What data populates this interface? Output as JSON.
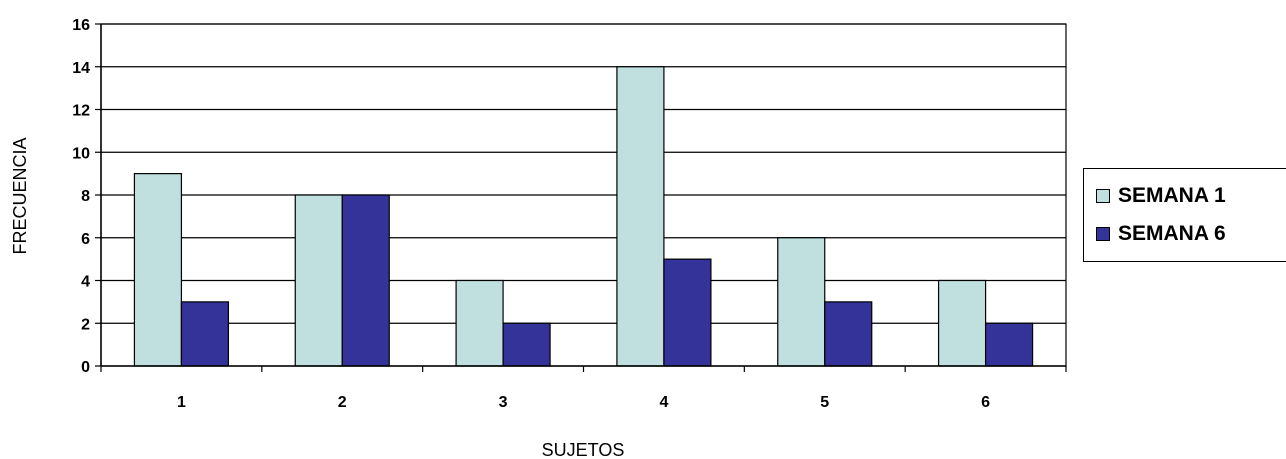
{
  "chart_data": {
    "type": "bar",
    "categories": [
      "1",
      "2",
      "3",
      "4",
      "5",
      "6"
    ],
    "series": [
      {
        "name": "SEMANA 1",
        "values": [
          9,
          8,
          4,
          14,
          6,
          4
        ],
        "color": "#c0e0e0"
      },
      {
        "name": "SEMANA 6",
        "values": [
          3,
          8,
          2,
          5,
          3,
          2
        ],
        "color": "#333399"
      }
    ],
    "title": "",
    "xlabel": "SUJETOS",
    "ylabel": "FRECUENCIA",
    "ylim": [
      0,
      16
    ],
    "yticks": [
      "0",
      "2",
      "4",
      "6",
      "8",
      "10",
      "12",
      "14",
      "16"
    ],
    "grid": true,
    "legend_position": "right"
  }
}
